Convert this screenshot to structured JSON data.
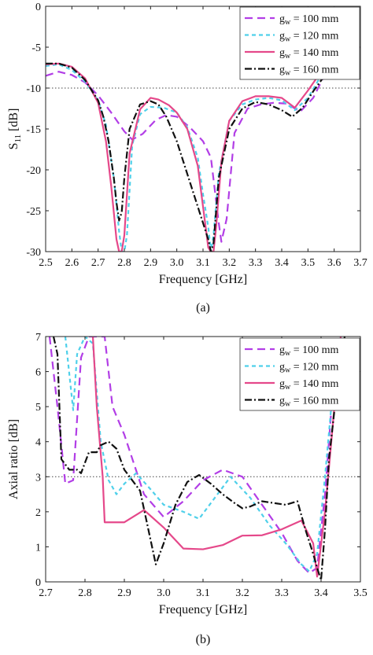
{
  "chart_data": [
    {
      "type": "line",
      "panel_label": "(a)",
      "xlabel": "Frequency [GHz]",
      "ylabel_main": "S",
      "ylabel_sub": "11",
      "ylabel_unit": " [dB]",
      "xlim": [
        2.5,
        3.7
      ],
      "ylim": [
        -30,
        0
      ],
      "xticks": [
        "2.5",
        "2.6",
        "2.7",
        "2.8",
        "2.9",
        "3.0",
        "3.1",
        "3.2",
        "3.3",
        "3.4",
        "3.5",
        "3.6",
        "3.7"
      ],
      "yticks": [
        "0",
        "-5",
        "-10",
        "-15",
        "-20",
        "-25",
        "-30"
      ],
      "reference_line": -10,
      "legend_position": "top-right",
      "series": [
        {
          "name": "100",
          "color": "#b23ee6",
          "dash": "10 6",
          "x": [
            2.5,
            2.55,
            2.6,
            2.65,
            2.7,
            2.75,
            2.8,
            2.83,
            2.87,
            2.92,
            2.96,
            3.0,
            3.05,
            3.1,
            3.13,
            3.16,
            3.17,
            3.19,
            3.22,
            3.27,
            3.32,
            3.37,
            3.42,
            3.47,
            3.52,
            3.57,
            3.62,
            3.7
          ],
          "y": [
            -8.5,
            -8.0,
            -8.4,
            -9.3,
            -10.9,
            -13.0,
            -15.3,
            -16.3,
            -15.6,
            -13.9,
            -13.3,
            -13.5,
            -14.8,
            -16.5,
            -18.5,
            -26.5,
            -28.8,
            -26.0,
            -15.5,
            -12.5,
            -12.0,
            -11.8,
            -11.9,
            -12.9,
            -11.2,
            -8.0,
            -6.0,
            -5.0
          ]
        },
        {
          "name": "120",
          "color": "#4fd0ea",
          "dash": "5 4",
          "x": [
            2.5,
            2.55,
            2.6,
            2.65,
            2.7,
            2.73,
            2.76,
            2.78,
            2.79,
            2.8,
            2.81,
            2.83,
            2.86,
            2.9,
            2.95,
            3.0,
            3.04,
            3.08,
            3.1,
            3.12,
            3.13,
            3.14,
            3.16,
            3.2,
            3.25,
            3.3,
            3.35,
            3.4,
            3.45,
            3.5,
            3.55,
            3.6,
            3.7
          ],
          "y": [
            -7.3,
            -7.1,
            -7.8,
            -9.2,
            -11.5,
            -14.5,
            -21.0,
            -27.5,
            -30,
            -30,
            -28.0,
            -17.0,
            -13.2,
            -12.3,
            -12.4,
            -13.0,
            -14.8,
            -18.5,
            -23.0,
            -27.0,
            -30,
            -28.0,
            -20.5,
            -14.0,
            -12.0,
            -11.4,
            -11.2,
            -11.5,
            -12.7,
            -11.2,
            -8.5,
            -6.3,
            -5.0
          ]
        },
        {
          "name": "140",
          "color": "#e5488a",
          "dash": "",
          "x": [
            2.5,
            2.55,
            2.6,
            2.65,
            2.7,
            2.73,
            2.75,
            2.77,
            2.78,
            2.79,
            2.8,
            2.82,
            2.86,
            2.9,
            2.93,
            2.97,
            3.0,
            3.04,
            3.08,
            3.1,
            3.12,
            3.13,
            3.14,
            3.15,
            3.17,
            3.2,
            3.25,
            3.3,
            3.35,
            3.4,
            3.45,
            3.5,
            3.55,
            3.6,
            3.7
          ],
          "y": [
            -7.1,
            -7.0,
            -7.4,
            -8.8,
            -11.8,
            -16.5,
            -22.0,
            -28.5,
            -30,
            -30,
            -28.0,
            -18.0,
            -12.6,
            -11.2,
            -11.4,
            -12.1,
            -13.0,
            -15.0,
            -19.5,
            -24.5,
            -29.5,
            -30,
            -30,
            -27.0,
            -19.0,
            -14.0,
            -11.6,
            -11.0,
            -11.0,
            -11.2,
            -12.4,
            -10.3,
            -8.0,
            -6.1,
            -5.0
          ]
        },
        {
          "name": "160",
          "color": "#111111",
          "dash": "9 3 2 3",
          "x": [
            2.5,
            2.55,
            2.6,
            2.65,
            2.7,
            2.72,
            2.74,
            2.76,
            2.77,
            2.78,
            2.79,
            2.8,
            2.82,
            2.86,
            2.9,
            2.93,
            2.96,
            3.0,
            3.04,
            3.08,
            3.1,
            3.12,
            3.13,
            3.14,
            3.16,
            3.2,
            3.25,
            3.3,
            3.35,
            3.4,
            3.44,
            3.48,
            3.52,
            3.57,
            3.62,
            3.7
          ],
          "y": [
            -7.0,
            -7.0,
            -7.5,
            -9.0,
            -11.5,
            -13.5,
            -16.5,
            -21.0,
            -24.0,
            -26.2,
            -25.2,
            -21.0,
            -15.0,
            -12.0,
            -11.6,
            -12.0,
            -13.5,
            -16.5,
            -20.5,
            -24.5,
            -26.5,
            -28.5,
            -30,
            -29.0,
            -21.0,
            -15.0,
            -12.5,
            -11.7,
            -12.0,
            -12.7,
            -13.5,
            -12.4,
            -10.4,
            -8.2,
            -6.5,
            -5.0
          ]
        }
      ]
    },
    {
      "type": "line",
      "panel_label": "(b)",
      "xlabel": "Frequency [GHz]",
      "ylabel": "Axial ratio [dB]",
      "xlim": [
        2.7,
        3.5
      ],
      "ylim": [
        0,
        7
      ],
      "xticks": [
        "2.7",
        "2.8",
        "2.9",
        "3.0",
        "3.1",
        "3.2",
        "3.3",
        "3.4",
        "3.5"
      ],
      "yticks": [
        "0",
        "1",
        "2",
        "3",
        "4",
        "5",
        "6",
        "7"
      ],
      "reference_line": 3,
      "legend_position": "top-right",
      "series": [
        {
          "name": "100",
          "color": "#b23ee6",
          "dash": "10 6",
          "x": [
            2.71,
            2.73,
            2.75,
            2.77,
            2.79,
            2.81,
            2.82,
            2.85,
            2.87,
            2.9,
            2.95,
            3.0,
            3.05,
            3.1,
            3.15,
            3.2,
            3.25,
            3.3,
            3.34,
            3.37,
            3.39,
            3.41,
            3.43,
            3.45
          ],
          "y": [
            7,
            5.0,
            2.8,
            2.9,
            6.4,
            7,
            7,
            7,
            5.0,
            4.2,
            2.5,
            1.85,
            2.3,
            2.9,
            3.2,
            3.0,
            2.2,
            1.4,
            0.6,
            0.25,
            0.4,
            2.5,
            5.5,
            7
          ]
        },
        {
          "name": "120",
          "color": "#4fd0ea",
          "dash": "5 4",
          "x": [
            2.75,
            2.77,
            2.78,
            2.8,
            2.82,
            2.84,
            2.86,
            2.88,
            2.9,
            2.93,
            2.97,
            3.0,
            3.05,
            3.09,
            3.13,
            3.17,
            3.22,
            3.27,
            3.31,
            3.35,
            3.37,
            3.39,
            3.41,
            3.43,
            3.45
          ],
          "y": [
            7,
            4.9,
            6.5,
            7,
            6.8,
            4.0,
            2.9,
            2.5,
            2.8,
            3.1,
            2.6,
            2.2,
            2.0,
            1.8,
            2.4,
            3.0,
            2.4,
            1.6,
            1.1,
            0.5,
            0.3,
            0.8,
            3.0,
            5.5,
            7
          ]
        },
        {
          "name": "140",
          "color": "#e5488a",
          "dash": "",
          "x": [
            2.82,
            2.83,
            2.845,
            2.85,
            2.9,
            2.95,
            3.0,
            3.05,
            3.1,
            3.15,
            3.2,
            3.25,
            3.3,
            3.35,
            3.38,
            3.39,
            3.41,
            3.43,
            3.45
          ],
          "y": [
            7,
            5.0,
            3.0,
            1.7,
            1.7,
            2.05,
            1.55,
            0.95,
            0.93,
            1.05,
            1.32,
            1.33,
            1.5,
            1.75,
            1.1,
            0.15,
            2.0,
            4.5,
            7
          ]
        },
        {
          "name": "160",
          "color": "#111111",
          "dash": "9 3 2 3",
          "x": [
            2.72,
            2.73,
            2.74,
            2.76,
            2.78,
            2.79,
            2.81,
            2.83,
            2.84,
            2.86,
            2.88,
            2.9,
            2.94,
            2.98,
            3.0,
            3.03,
            3.06,
            3.09,
            3.12,
            3.15,
            3.18,
            3.2,
            3.22,
            3.25,
            3.28,
            3.31,
            3.34,
            3.36,
            3.38,
            3.39,
            3.4,
            3.41,
            3.42,
            3.44,
            3.46
          ],
          "y": [
            7,
            6.5,
            3.5,
            3.2,
            3.2,
            3.1,
            3.7,
            3.7,
            3.9,
            4.0,
            3.8,
            3.2,
            2.6,
            0.5,
            1.1,
            2.2,
            2.85,
            3.05,
            2.8,
            2.5,
            2.25,
            2.1,
            2.15,
            2.3,
            2.25,
            2.2,
            2.3,
            1.5,
            0.8,
            0.4,
            0.05,
            1.5,
            3.5,
            5.5,
            7
          ]
        }
      ]
    }
  ]
}
